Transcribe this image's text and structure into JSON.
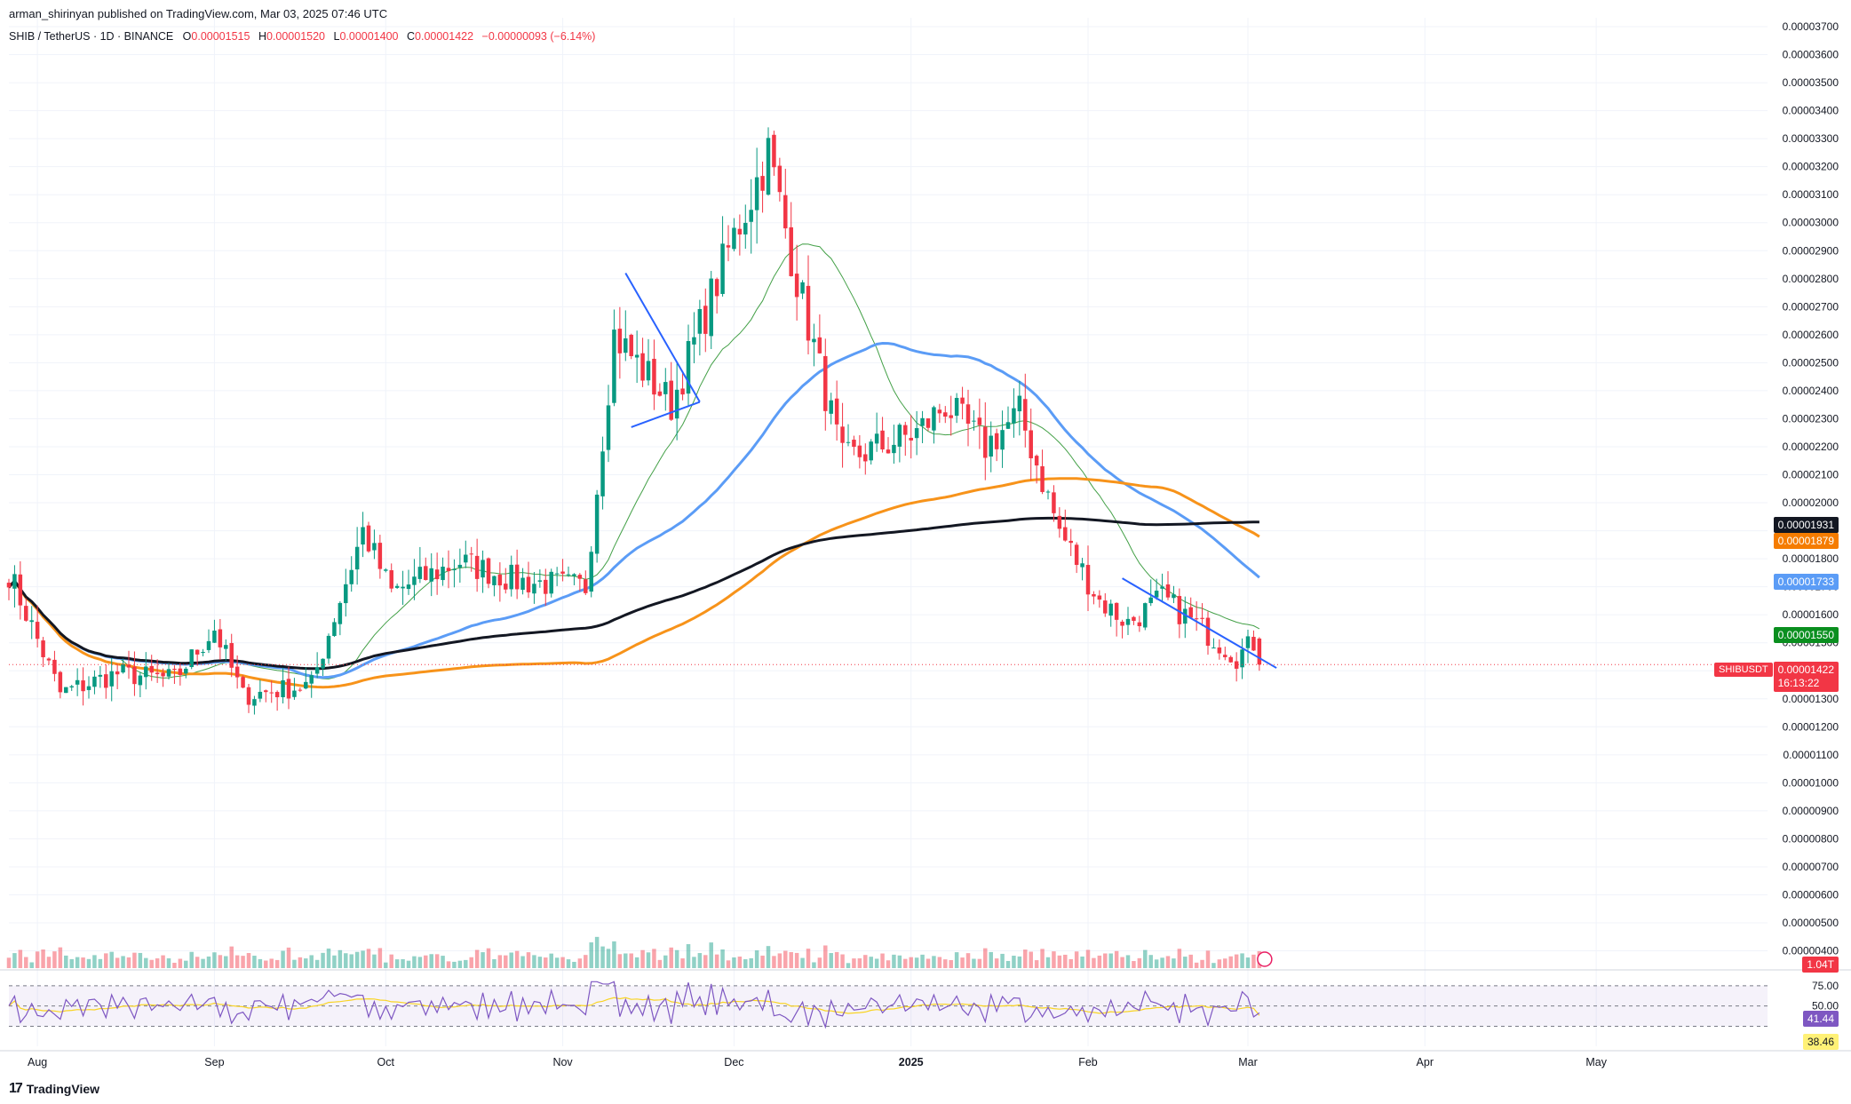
{
  "header": {
    "publisher": "arman_shirinyan published on TradingView.com, Mar 03, 2025 07:46 UTC",
    "symbol": "SHIB / TetherUS · 1D · BINANCE",
    "open_label": "O",
    "open": "0.00001515",
    "high_label": "H",
    "high": "0.00001520",
    "low_label": "L",
    "low": "0.00001400",
    "close_label": "C",
    "close": "0.00001422",
    "change": "−0.00000093 (−6.14%)"
  },
  "footer": {
    "brand": "TradingView",
    "logo_icon": "tradingview-logo-icon"
  },
  "price_scale": {
    "labels": [
      "0.00003700",
      "0.00003600",
      "0.00003500",
      "0.00003400",
      "0.00003300",
      "0.00003200",
      "0.00003100",
      "0.00003000",
      "0.00002900",
      "0.00002800",
      "0.00002700",
      "0.00002600",
      "0.00002500",
      "0.00002400",
      "0.00002300",
      "0.00002200",
      "0.00002100",
      "0.00002000",
      "0.00001900",
      "0.00001800",
      "0.00001700",
      "0.00001600",
      "0.00001500",
      "0.00001400",
      "0.00001300",
      "0.00001200",
      "0.00001100",
      "0.00001000",
      "0.00000900",
      "0.00000800",
      "0.00000700",
      "0.00000600",
      "0.00000500",
      "0.00000400"
    ]
  },
  "price_tags": {
    "ma200": {
      "value": "0.00001931",
      "color": "#131722"
    },
    "ma100": {
      "value": "0.00001879",
      "color": "#f57c00"
    },
    "ma50": {
      "value": "0.00001733",
      "color": "#5b9cf6"
    },
    "ma20": {
      "value": "0.00001550",
      "color": "#0a8f1f"
    },
    "last": {
      "value": "0.00001422",
      "countdown": "16:13:22",
      "color": "#f23645"
    },
    "symbol": "SHIBUSDT",
    "volume": {
      "value": "1.04T",
      "color": "#f23645"
    }
  },
  "rsi": {
    "scale_labels": [
      "75.00",
      "50.00"
    ],
    "value": "41.44",
    "ma_value": "38.46"
  },
  "time_axis": [
    "Aug",
    "Sep",
    "Oct",
    "Nov",
    "Dec",
    "2025",
    "Feb",
    "Mar",
    "Apr",
    "May"
  ],
  "chart_data": {
    "type": "candlestick",
    "interval": "1D",
    "unit": "USDT",
    "x_range": [
      "2024-07-27",
      "2025-05-31"
    ],
    "ylim": [
      3.7e-06,
      3.7e-05
    ],
    "grid": true,
    "close_anchors": [
      {
        "date": "2024-07-27",
        "close": 1.75e-05
      },
      {
        "date": "2024-08-05",
        "close": 1.32e-05
      },
      {
        "date": "2024-08-15",
        "close": 1.39e-05
      },
      {
        "date": "2024-08-25",
        "close": 1.37e-05
      },
      {
        "date": "2024-09-01",
        "close": 1.55e-05
      },
      {
        "date": "2024-09-06",
        "close": 1.31e-05
      },
      {
        "date": "2024-09-18",
        "close": 1.35e-05
      },
      {
        "date": "2024-09-27",
        "close": 1.9e-05
      },
      {
        "date": "2024-10-02",
        "close": 1.68e-05
      },
      {
        "date": "2024-10-14",
        "close": 1.79e-05
      },
      {
        "date": "2024-10-24",
        "close": 1.72e-05
      },
      {
        "date": "2024-11-05",
        "close": 1.7e-05
      },
      {
        "date": "2024-11-10",
        "close": 2.6e-05
      },
      {
        "date": "2024-11-20",
        "close": 2.35e-05
      },
      {
        "date": "2024-11-30",
        "close": 2.9e-05
      },
      {
        "date": "2024-12-07",
        "close": 3.25e-05
      },
      {
        "date": "2024-12-12",
        "close": 2.8e-05
      },
      {
        "date": "2024-12-20",
        "close": 2.15e-05
      },
      {
        "date": "2025-01-02",
        "close": 2.25e-05
      },
      {
        "date": "2025-01-07",
        "close": 2.35e-05
      },
      {
        "date": "2025-01-14",
        "close": 2.2e-05
      },
      {
        "date": "2025-01-20",
        "close": 2.32e-05
      },
      {
        "date": "2025-01-27",
        "close": 1.9e-05
      },
      {
        "date": "2025-02-03",
        "close": 1.65e-05
      },
      {
        "date": "2025-02-08",
        "close": 1.57e-05
      },
      {
        "date": "2025-02-14",
        "close": 1.66e-05
      },
      {
        "date": "2025-02-24",
        "close": 1.5e-05
      },
      {
        "date": "2025-02-27",
        "close": 1.45e-05
      },
      {
        "date": "2025-03-02",
        "close": 1.5e-05
      },
      {
        "date": "2025-03-03",
        "close": 1.422e-05
      }
    ],
    "last_candle": {
      "date": "2025-03-03",
      "open": 1.515e-05,
      "high": 1.52e-05,
      "low": 1.4e-05,
      "close": 1.422e-05
    },
    "moving_averages": [
      {
        "end_value": 1.55e-05,
        "color": "#43a047"
      },
      {
        "end_value": 1.733e-05,
        "color": "#5b9cf6"
      },
      {
        "end_value": 1.879e-05,
        "color": "#f7931a"
      },
      {
        "end_value": 1.931e-05,
        "color": "#131722"
      }
    ],
    "trendlines": [
      {
        "from": {
          "date": "2024-11-12",
          "price": 2.82e-05
        },
        "to": {
          "date": "2024-11-25",
          "price": 2.36e-05
        },
        "color": "#2962ff"
      },
      {
        "from": {
          "date": "2024-11-13",
          "price": 2.27e-05
        },
        "to": {
          "date": "2024-11-25",
          "price": 2.36e-05
        },
        "color": "#2962ff"
      },
      {
        "from": {
          "date": "2025-02-07",
          "price": 1.73e-05
        },
        "to": {
          "date": "2025-03-06",
          "price": 1.41e-05
        },
        "color": "#2962ff"
      }
    ],
    "volume": {
      "last": "1.04T"
    },
    "rsi": {
      "levels": [
        75,
        50,
        25
      ],
      "value": 41.44,
      "ma": 38.46
    }
  }
}
